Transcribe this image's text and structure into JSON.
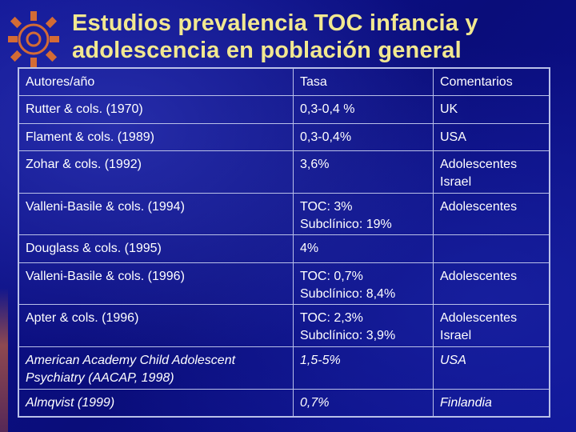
{
  "slide": {
    "title": "Estudios prevalencia TOC infancia y adolescencia en población general",
    "decoration": "gear-icon"
  },
  "table": {
    "header": [
      "Autores/año",
      "Tasa",
      "Comentarios"
    ],
    "rows": [
      {
        "author": "Rutter & cols. (1970)",
        "rate": [
          "0,3-0,4 %"
        ],
        "comment": [
          "UK"
        ]
      },
      {
        "author": "Flament & cols. (1989)",
        "rate": [
          "0,3-0,4%"
        ],
        "comment": [
          "USA"
        ]
      },
      {
        "author": "Zohar & cols. (1992)",
        "rate": [
          "3,6%"
        ],
        "comment": [
          "Adolescentes",
          "Israel"
        ]
      },
      {
        "author": "Valleni-Basile & cols. (1994)",
        "rate": [
          "TOC: 3%",
          "Subclínico: 19%"
        ],
        "comment": [
          "Adolescentes"
        ]
      },
      {
        "author": "Douglass & cols. (1995)",
        "rate": [
          "4%"
        ],
        "comment": []
      },
      {
        "author": "Valleni-Basile & cols. (1996)",
        "rate": [
          "TOC: 0,7%",
          "Subclínico: 8,4%"
        ],
        "comment": [
          "Adolescentes"
        ]
      },
      {
        "author": "Apter & cols. (1996)",
        "rate": [
          "TOC: 2,3%",
          "Subclínico: 3,9%"
        ],
        "comment": [
          "Adolescentes",
          "Israel"
        ]
      },
      {
        "author": "American Academy Child Adolescent Psychiatry (AACAP, 1998)",
        "rate": [
          "1,5-5%"
        ],
        "comment": [
          "USA"
        ],
        "italic": true
      },
      {
        "author": "Almqvist (1999)",
        "rate": [
          "0,7%"
        ],
        "comment": [
          "Finlandia"
        ],
        "italic": true
      }
    ]
  },
  "colors": {
    "background": "#0a0f8a",
    "title": "#f2e890",
    "text": "#ffffff",
    "gear": "#e8742a",
    "grid": "#b9c0e8"
  }
}
